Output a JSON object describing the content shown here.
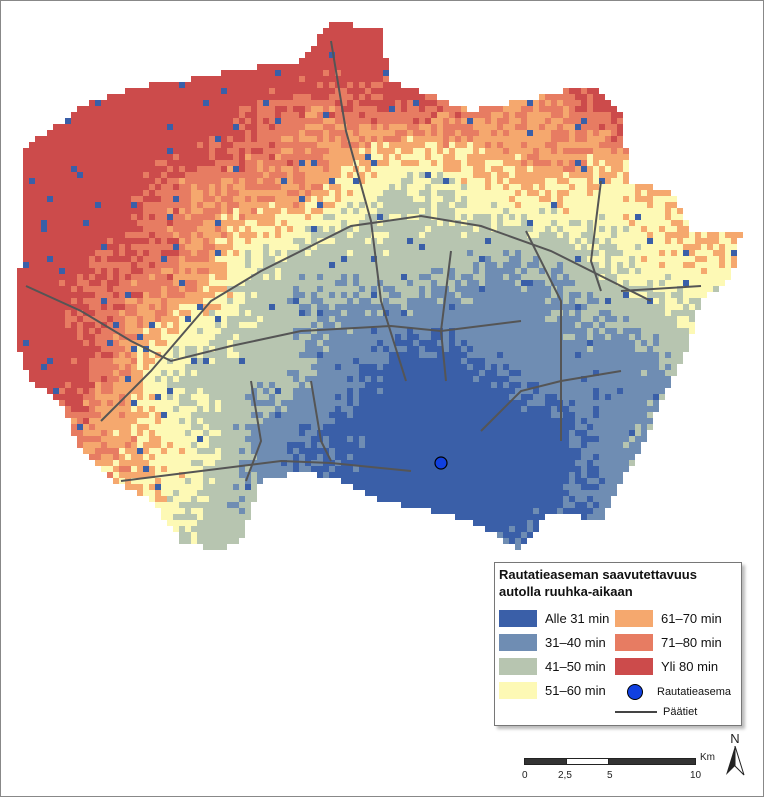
{
  "legend": {
    "title_line1": "Rautatieaseman saavutettavuus",
    "title_line2": "autolla ruuhka-aikaan",
    "classes": [
      {
        "label": "Alle 31 min",
        "color": "#3a5fa8"
      },
      {
        "label": "31–40 min",
        "color": "#6f8db3"
      },
      {
        "label": "41–50 min",
        "color": "#b7c5b0"
      },
      {
        "label": "51–60 min",
        "color": "#fdf9b5"
      },
      {
        "label": "61–70 min",
        "color": "#f5a86e"
      },
      {
        "label": "71–80 min",
        "color": "#e77c62"
      },
      {
        "label": "Yli 80 min",
        "color": "#cc4b4b"
      }
    ],
    "station_label": "Rautatieasema",
    "station_color": "#1040e0",
    "roads_label": "Päätiet"
  },
  "scale": {
    "unit": "Km",
    "ticks": [
      "0",
      "2,5",
      "5",
      "10"
    ]
  },
  "north_label": "N"
}
